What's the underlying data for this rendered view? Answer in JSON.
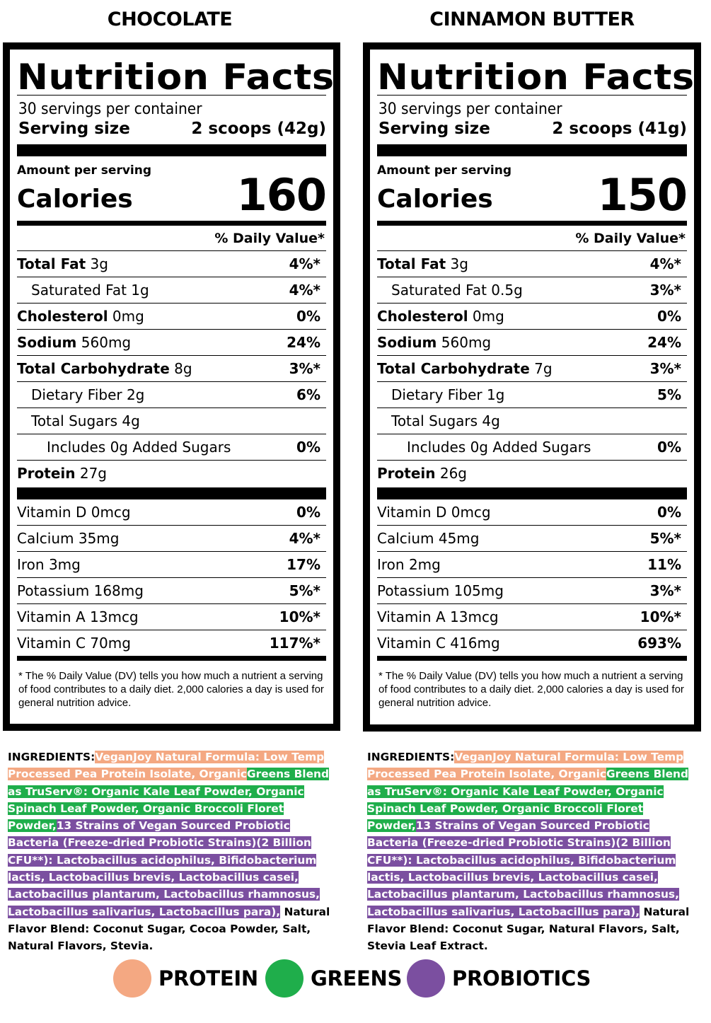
{
  "left": {
    "flavor": "CHOCOLATE",
    "title": "Nutrition Facts",
    "servings": "30 servings per container",
    "serving_size_label": "Serving size",
    "serving_size_value": "2 scoops (42g)",
    "amount_per": "Amount per serving",
    "calories_label": "Calories",
    "calories_value": "160",
    "dv_header": "% Daily Value*",
    "nutrients": [
      {
        "bold": "Total Fat",
        "amt": " 3g",
        "pct": "4%*"
      },
      {
        "bold": "",
        "amt": "Saturated Fat 1g",
        "pct": "4%*"
      },
      {
        "bold": "Cholesterol",
        "amt": " 0mg",
        "pct": "0%"
      },
      {
        "bold": "Sodium",
        "amt": " 560mg",
        "pct": "24%"
      },
      {
        "bold": "Total Carbohydrate",
        "amt": " 8g",
        "pct": "3%*"
      },
      {
        "bold": "",
        "amt": "Dietary Fiber 2g",
        "pct": "6%"
      },
      {
        "bold": "",
        "amt": "Total Sugars 4g",
        "pct": ""
      },
      {
        "bold": "",
        "amt": "Includes 0g Added Sugars",
        "pct": "0%"
      },
      {
        "bold": "Protein",
        "amt": " 27g",
        "pct": ""
      }
    ],
    "vitamins": [
      {
        "name": "Vitamin D 0mcg",
        "pct": "0%"
      },
      {
        "name": "Calcium 35mg",
        "pct": "4%*"
      },
      {
        "name": "Iron 3mg",
        "pct": "17%"
      },
      {
        "name": "Potassium 168mg",
        "pct": "5%*"
      },
      {
        "name": "Vitamin A 13mcg",
        "pct": "10%*"
      },
      {
        "name": "Vitamin C 70mg",
        "pct": "117%*"
      }
    ],
    "footnote": "* The % Daily Value (DV) tells you how much a nutrient a serving of food contributes to a daily diet. 2,000 calories a day is used for general nutrition advice.",
    "ingredients": {
      "label": "INGREDIENTS:",
      "protein": "VeganJoy Natural Formula: Low Temp Processed Pea Protein Isolate, Organic",
      "greens": "Greens Blend as TruServ®: Organic Kale Leaf Powder, Organic Spinach Leaf Powder, Organic Broccoli Floret Powder,",
      "probiotics": "13 Strains of Vegan Sourced Probiotic Bacteria (Freeze-dried Probiotic Strains)(2 Billion CFU**): Lactobacillus acidophilus, Bifidobacterium lactis, Lactobacillus brevis, Lactobacillus casei, Lactobacillus plantarum, Lactobacillus rhamnosus, Lactobacillus salivarius, Lactobacillus para),",
      "rest": "Natural Flavor Blend: Coconut Sugar, Cocoa Powder, Salt, Natural Flavors, Stevia."
    }
  },
  "right": {
    "flavor": "CINNAMON BUTTER",
    "title": "Nutrition Facts",
    "servings": "30 servings per container",
    "serving_size_label": "Serving size",
    "serving_size_value": "2 scoops (41g)",
    "amount_per": "Amount per serving",
    "calories_label": "Calories",
    "calories_value": "150",
    "dv_header": "% Daily Value*",
    "nutrients": [
      {
        "bold": "Total Fat",
        "amt": " 3g",
        "pct": "4%*"
      },
      {
        "bold": "",
        "amt": "Saturated Fat 0.5g",
        "pct": "3%*"
      },
      {
        "bold": "Cholesterol",
        "amt": " 0mg",
        "pct": "0%"
      },
      {
        "bold": "Sodium",
        "amt": " 560mg",
        "pct": "24%"
      },
      {
        "bold": "Total Carbohydrate",
        "amt": " 7g",
        "pct": "3%*"
      },
      {
        "bold": "",
        "amt": "Dietary Fiber 1g",
        "pct": "5%"
      },
      {
        "bold": "",
        "amt": "Total Sugars 4g",
        "pct": ""
      },
      {
        "bold": "",
        "amt": "Includes 0g Added Sugars",
        "pct": "0%"
      },
      {
        "bold": "Protein",
        "amt": " 26g",
        "pct": ""
      }
    ],
    "vitamins": [
      {
        "name": "Vitamin D 0mcg",
        "pct": "0%"
      },
      {
        "name": "Calcium 45mg",
        "pct": "5%*"
      },
      {
        "name": "Iron 2mg",
        "pct": "11%"
      },
      {
        "name": "Potassium 105mg",
        "pct": "3%*"
      },
      {
        "name": "Vitamin A 13mcg",
        "pct": "10%*"
      },
      {
        "name": "Vitamin C 416mg",
        "pct": "693%"
      }
    ],
    "footnote": "* The % Daily Value (DV) tells you how much a nutrient a serving of food contributes to a daily diet. 2,000 calories a day is used for general nutrition advice.",
    "ingredients": {
      "label": "INGREDIENTS:",
      "protein": "VeganJoy Natural Formula: Low Temp Processed Pea Protein Isolate, Organic",
      "greens": "Greens Blend as TruServ®: Organic Kale Leaf Powder, Organic Spinach Leaf Powder, Organic Broccoli Floret Powder,",
      "probiotics": "13 Strains of Vegan Sourced Probiotic Bacteria (Freeze-dried Probiotic Strains)(2 Billion CFU**): Lactobacillus acidophilus, Bifidobacterium lactis, Lactobacillus brevis, Lactobacillus casei, Lactobacillus plantarum, Lactobacillus rhamnosus, Lactobacillus salivarius, Lactobacillus para),",
      "rest": "Natural Flavor Blend: Coconut Sugar, Natural Flavors, Salt, Stevia Leaf Extract."
    }
  },
  "legend": [
    {
      "label": "PROTEIN",
      "color": "#f4a882"
    },
    {
      "label": "GREENS",
      "color": "#1fae4b"
    },
    {
      "label": "PROBIOTICS",
      "color": "#7b4fa0"
    }
  ]
}
